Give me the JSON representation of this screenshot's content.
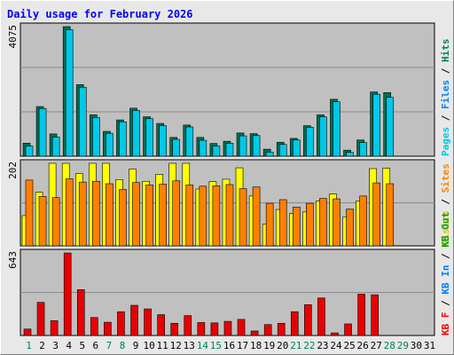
{
  "chart_data": {
    "type": "bar",
    "title": "Daily usage for February 2026",
    "colors": {
      "background": "#e8e8e8",
      "plot_background": "#c0c0c0",
      "gridline": "#8a8a8a",
      "pages": "#00805c",
      "files": "#0080ff",
      "hits": "#008040",
      "visits": "#ffff00",
      "sites": "#ff8000",
      "kbin": "#0080ff",
      "kbout": "#00a000",
      "kbf": "#ff0000",
      "bar_hits": "#00c8e8",
      "bar_pages": "#007050",
      "bar_visits": "#ffff00",
      "bar_sites": "#ff8000",
      "bar_kbf": "#e80000",
      "weekday_tick": "#000000",
      "weekend_tick": "#00805c"
    },
    "x": [
      "1",
      "2",
      "3",
      "4",
      "5",
      "6",
      "7",
      "8",
      "9",
      "10",
      "11",
      "12",
      "13",
      "14",
      "15",
      "16",
      "17",
      "18",
      "19",
      "20",
      "21",
      "22",
      "23",
      "24",
      "25",
      "26",
      "27",
      "28",
      "29",
      "30",
      "31"
    ],
    "weekend_days": [
      "1",
      "7",
      "8",
      "14",
      "15",
      "21",
      "22",
      "28",
      "29"
    ],
    "panels": [
      {
        "id": "hits",
        "ymax_label": "4075",
        "ymax": 4075,
        "right_labels": [
          {
            "text": "Pages",
            "color": "#00c8e8"
          },
          {
            "text": " / ",
            "color": "#000000"
          },
          {
            "text": "Files",
            "color": "#0080ff"
          },
          {
            "text": " / ",
            "color": "#000000"
          },
          {
            "text": "Hits",
            "color": "#00805c"
          }
        ],
        "series": [
          {
            "key": "pages",
            "values": [
              410,
              1560,
              700,
              4075,
              2250,
              1300,
              780,
              1140,
              1510,
              1240,
              1030,
              590,
              980,
              590,
              400,
              470,
              730,
              710,
              220,
              440,
              560,
              960,
              1300,
              1790,
              190,
              510,
              2020,
              2000,
              0,
              0,
              0
            ]
          },
          {
            "key": "hits",
            "values": [
              320,
              1500,
              600,
              3980,
              2170,
              1220,
              720,
              1080,
              1440,
              1180,
              960,
              530,
              920,
              500,
              320,
              410,
              640,
              650,
              130,
              370,
              510,
              910,
              1240,
              1710,
              120,
              430,
              1950,
              1850,
              0,
              0,
              0
            ]
          }
        ]
      },
      {
        "id": "visits",
        "ymax_label": "202",
        "ymax": 202,
        "right_labels": [
          {
            "text": "Visits",
            "color": "#e8c000"
          },
          {
            "text": " / ",
            "color": "#000000"
          },
          {
            "text": "Sites",
            "color": "#ff8000"
          }
        ],
        "series": [
          {
            "key": "visits",
            "values": [
              74,
              131,
              202,
              202,
              177,
              202,
              202,
              162,
              188,
              158,
              175,
              202,
              202,
              139,
              157,
              163,
              191,
              122,
              53,
              89,
              79,
              83,
              110,
              127,
              71,
              110,
              189,
              190,
              0,
              0,
              0
            ]
          },
          {
            "key": "sites",
            "values": [
              161,
              121,
              118,
              164,
              156,
              158,
              152,
              138,
              155,
              149,
              151,
              159,
              149,
              146,
              147,
              150,
              140,
              144,
              104,
              113,
              95,
              104,
              116,
              115,
              90,
              122,
              154,
              152,
              0,
              0,
              0
            ]
          }
        ]
      },
      {
        "id": "kbf",
        "ymax_label": "643",
        "ymax": 643,
        "right_labels": [
          {
            "text": "KB F",
            "color": "#ff0000"
          },
          {
            "text": " / ",
            "color": "#000000"
          },
          {
            "text": "KB In",
            "color": "#0080ff"
          },
          {
            "text": " / ",
            "color": "#000000"
          },
          {
            "text": "KB Out",
            "color": "#00a000"
          }
        ],
        "series": [
          {
            "key": "kbf",
            "values": [
              50,
              258,
              115,
              643,
              357,
              140,
              103,
              185,
              235,
              207,
              162,
              95,
              155,
              101,
              98,
              110,
              125,
              35,
              85,
              95,
              185,
              240,
              292,
              20,
              90,
              322,
              317,
              0,
              0,
              0,
              0
            ]
          }
        ]
      }
    ]
  }
}
